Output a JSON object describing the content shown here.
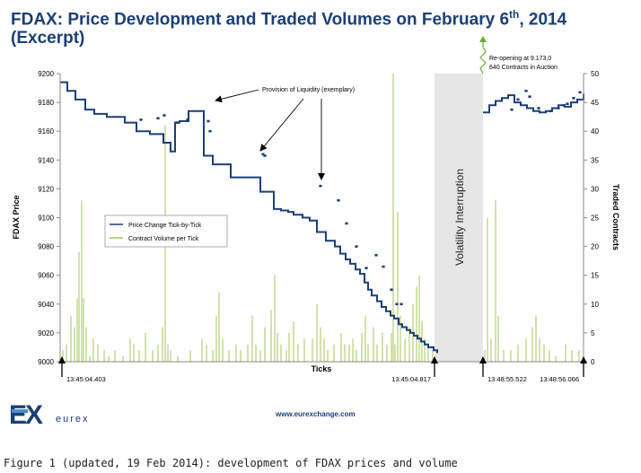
{
  "title": {
    "main": "FDAX: Price Development and Traded Volumes on February 6",
    "sup": "th",
    "tail": ", 2014",
    "line2": "(Excerpt)"
  },
  "website": "www.eurexchange.com",
  "caption": "Figure 1 (updated, 19 Feb 2014): development of FDAX prices and volume",
  "logo": {
    "letters": "EX",
    "wordmark": "eurex",
    "colors": {
      "mark": "#1b3f78",
      "bar": "#4b8fc8"
    }
  },
  "chart_data": {
    "type": "line",
    "xlabel": "Ticks",
    "ylabel": "FDAX Price",
    "y2label": "Traded Contracts",
    "ylim": [
      9000,
      9200
    ],
    "y2lim": [
      0,
      50
    ],
    "yticks": [
      9000,
      9020,
      9040,
      9060,
      9080,
      9100,
      9120,
      9140,
      9160,
      9180,
      9200
    ],
    "y2ticks": [
      0,
      5,
      10,
      15,
      20,
      25,
      30,
      35,
      40,
      45,
      50
    ],
    "legend_position": "left-middle",
    "time_labels": [
      "13:45:04.403",
      "13:45:04.817",
      "13:48:55.522",
      "13:48:56.066"
    ],
    "annotations": {
      "liquidity": "Provision of Liquidity (exemplary)",
      "interruption": "Volatility Interruption",
      "reopening_line1": "Re-opening at 9.173,0",
      "reopening_line2": "640 Contracts in Auction"
    },
    "colors": {
      "price": "#1b3f78",
      "volume": "#a6c45a",
      "shade": "#e6e6e6",
      "title": "#1b3f78"
    },
    "series": [
      {
        "name": "Price Change Tick-by-Tick",
        "segments": [
          {
            "x": [
              0,
              8,
              17,
              28,
              38,
              52,
              72,
              85,
              100,
              115,
              123,
              128,
              133,
              137,
              143,
              150,
              160,
              170,
              190,
              210,
              223,
              238,
              246,
              254,
              260,
              270,
              278,
              286,
              296,
              306,
              312,
              318,
              323,
              329,
              334,
              339,
              343,
              347,
              353,
              358,
              363,
              368,
              372,
              377,
              381,
              386,
              390,
              394,
              398,
              402,
              406,
              410,
              416,
              420
            ],
            "y": [
              9194,
              9188,
              9182,
              9175,
              9172,
              9170,
              9166,
              9160,
              9158,
              9152,
              9146,
              9166,
              9167,
              9167,
              9174,
              9174,
              9143,
              9137,
              9128,
              9128,
              9118,
              9106,
              9105,
              9104,
              9102,
              9100,
              9098,
              9090,
              9084,
              9080,
              9075,
              9071,
              9068,
              9064,
              9061,
              9055,
              9050,
              9046,
              9042,
              9038,
              9035,
              9032,
              9030,
              9026,
              9024,
              9022,
              9020,
              9018,
              9016,
              9014,
              9012,
              9010,
              9008,
              9006
            ]
          },
          {
            "x": [
              471,
              478,
              485,
              492,
              499,
              506,
              513,
              520,
              527,
              534,
              541,
              548,
              555,
              562,
              569,
              576,
              583
            ],
            "y": [
              9173,
              9178,
              9181,
              9183,
              9185,
              9180,
              9178,
              9176,
              9174,
              9173,
              9174,
              9176,
              9178,
              9177,
              9180,
              9182,
              9186
            ]
          }
        ],
        "markers": [
          {
            "x": [
              90,
              109,
              116,
              130,
              142,
              165,
              167,
              226,
              228,
              290,
              310,
              319,
              330,
              341,
              352,
              360,
              369,
              375,
              380
            ],
            "y": [
              9168,
              9169,
              9171,
              9166,
              9168,
              9167,
              9160,
              9144,
              9143,
              9122,
              9112,
              9096,
              9080,
              9065,
              9074,
              9066,
              9050,
              9040,
              9040
            ]
          },
          {
            "x": [
              503,
              510,
              519,
              523,
              533,
              547,
              555,
              561,
              565,
              572,
              579
            ],
            "y": [
              9175,
              9182,
              9188,
              9184,
              9176,
              9174,
              9176,
              9178,
              9179,
              9183,
              9187
            ]
          }
        ]
      },
      {
        "name": "Contract Volume per Tick",
        "axis": "right",
        "spikes": [
          [
            3,
            2
          ],
          [
            7,
            3
          ],
          [
            12,
            8
          ],
          [
            16,
            6
          ],
          [
            19,
            11
          ],
          [
            21,
            19
          ],
          [
            24,
            28
          ],
          [
            26,
            11
          ],
          [
            29,
            6
          ],
          [
            33,
            1
          ],
          [
            37,
            4
          ],
          [
            42,
            3
          ],
          [
            49,
            2
          ],
          [
            54,
            1
          ],
          [
            61,
            2
          ],
          [
            70,
            1
          ],
          [
            78,
            4
          ],
          [
            82,
            3
          ],
          [
            88,
            2
          ],
          [
            95,
            5
          ],
          [
            103,
            2
          ],
          [
            109,
            3
          ],
          [
            114,
            6
          ],
          [
            117,
            41
          ],
          [
            120,
            3
          ],
          [
            123,
            2
          ],
          [
            131,
            1
          ],
          [
            145,
            2
          ],
          [
            158,
            4
          ],
          [
            163,
            3
          ],
          [
            170,
            2
          ],
          [
            174,
            8
          ],
          [
            177,
            12
          ],
          [
            181,
            4
          ],
          [
            188,
            2
          ],
          [
            196,
            3
          ],
          [
            201,
            2
          ],
          [
            209,
            3
          ],
          [
            214,
            8
          ],
          [
            218,
            3
          ],
          [
            223,
            2
          ],
          [
            228,
            6
          ],
          [
            235,
            9
          ],
          [
            239,
            15
          ],
          [
            242,
            5
          ],
          [
            246,
            3
          ],
          [
            252,
            2
          ],
          [
            255,
            5
          ],
          [
            260,
            7
          ],
          [
            265,
            3
          ],
          [
            272,
            4
          ],
          [
            281,
            4
          ],
          [
            286,
            10
          ],
          [
            290,
            6
          ],
          [
            294,
            4
          ],
          [
            298,
            2
          ],
          [
            305,
            3
          ],
          [
            313,
            5
          ],
          [
            317,
            3
          ],
          [
            322,
            3
          ],
          [
            326,
            4
          ],
          [
            330,
            2
          ],
          [
            336,
            5
          ],
          [
            340,
            8
          ],
          [
            343,
            3
          ],
          [
            349,
            6
          ],
          [
            353,
            3
          ],
          [
            359,
            5
          ],
          [
            364,
            3
          ],
          [
            369,
            5
          ],
          [
            371,
            50
          ],
          [
            373,
            3
          ],
          [
            376,
            26
          ],
          [
            379,
            8
          ],
          [
            384,
            4
          ],
          [
            389,
            6
          ],
          [
            393,
            10
          ],
          [
            397,
            13
          ],
          [
            400,
            15
          ],
          [
            403,
            7
          ],
          [
            406,
            4
          ],
          [
            410,
            3
          ],
          [
            415,
            2
          ],
          [
            473,
            2
          ],
          [
            476,
            25
          ],
          [
            480,
            4
          ],
          [
            485,
            28
          ],
          [
            488,
            8
          ],
          [
            494,
            2
          ],
          [
            502,
            2
          ],
          [
            510,
            3
          ],
          [
            519,
            4
          ],
          [
            526,
            6
          ],
          [
            530,
            8
          ],
          [
            534,
            4
          ],
          [
            539,
            3
          ],
          [
            545,
            2
          ],
          [
            552,
            1
          ],
          [
            563,
            3
          ],
          [
            570,
            2
          ],
          [
            578,
            2
          ]
        ]
      }
    ]
  }
}
